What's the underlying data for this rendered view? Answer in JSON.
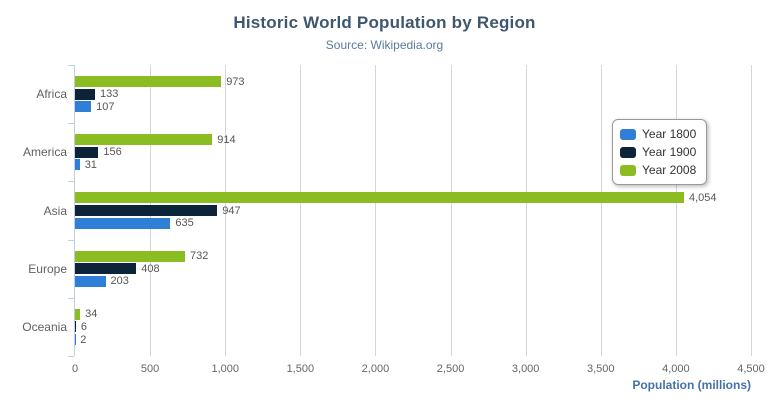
{
  "header": {
    "title": "Historic World Population by Region",
    "subtitle": "Source: Wikipedia.org"
  },
  "menu": {
    "icon": "hamburger-icon",
    "color": "#666666"
  },
  "colors": {
    "year_1800": "#2f7ed8",
    "year_1900": "#0d233a",
    "year_2008": "#8bbc21",
    "axis_line": "#C0D0E0",
    "gridline": "#d6d6d6",
    "title_text": "#3E576F",
    "subtitle_text": "#5b7a9e",
    "axis_title_text": "#4572A7"
  },
  "chart_data": {
    "type": "bar",
    "orientation": "horizontal",
    "title": "Historic World Population by Region",
    "subtitle": "Source: Wikipedia.org",
    "categories": [
      "Africa",
      "America",
      "Asia",
      "Europe",
      "Oceania"
    ],
    "series": [
      {
        "name": "Year 1800",
        "color": "#2f7ed8",
        "values": [
          107,
          31,
          635,
          203,
          2
        ],
        "labels": [
          "107",
          "31",
          "635",
          "203",
          "2"
        ]
      },
      {
        "name": "Year 1900",
        "color": "#0d233a",
        "values": [
          133,
          156,
          947,
          408,
          6
        ],
        "labels": [
          "133",
          "156",
          "947",
          "408",
          "6"
        ]
      },
      {
        "name": "Year 2008",
        "color": "#8bbc21",
        "values": [
          973,
          914,
          4054,
          732,
          34
        ],
        "labels": [
          "973",
          "914",
          "4,054",
          "732",
          "34"
        ]
      }
    ],
    "bar_order_top_to_bottom": [
      "Year 2008",
      "Year 1900",
      "Year 1800"
    ],
    "xlabel": "Population (millions)",
    "ylabel": "",
    "xlim": [
      0,
      4500
    ],
    "x_ticks": [
      0,
      500,
      1000,
      1500,
      2000,
      2500,
      3000,
      3500,
      4000,
      4500
    ],
    "x_tick_labels": [
      "0",
      "500",
      "1,000",
      "1,500",
      "2,000",
      "2,500",
      "3,000",
      "3,500",
      "4,000",
      "4,500"
    ],
    "grid": true,
    "legend_position": "right"
  },
  "legend": {
    "items": [
      {
        "label": "Year 1800",
        "color": "#2f7ed8"
      },
      {
        "label": "Year 1900",
        "color": "#0d233a"
      },
      {
        "label": "Year 2008",
        "color": "#8bbc21"
      }
    ]
  },
  "axis": {
    "title": "Population (millions)"
  }
}
